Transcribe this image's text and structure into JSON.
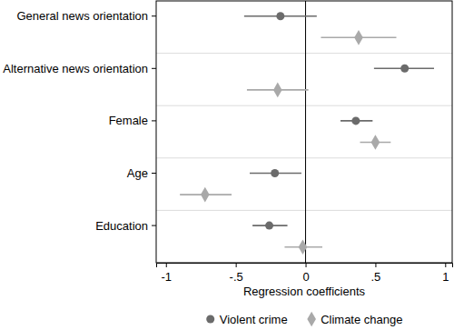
{
  "chart_data": {
    "type": "dot",
    "orientation": "horizontal",
    "x_label": "Regression coefficients",
    "categories": [
      "General news orientation",
      "Alternative news orientation",
      "Female",
      "Age",
      "Education"
    ],
    "series": [
      {
        "name": "Violent crime",
        "color": "#6b6b6b",
        "marker": "circle",
        "values": [
          -0.18,
          0.71,
          0.36,
          -0.22,
          -0.26
        ],
        "ci_lower": [
          -0.44,
          0.49,
          0.25,
          -0.4,
          -0.38
        ],
        "ci_upper": [
          0.08,
          0.92,
          0.48,
          -0.03,
          -0.13
        ]
      },
      {
        "name": "Climate change",
        "color": "#a9a9a9",
        "marker": "diamond",
        "values": [
          0.38,
          -0.2,
          0.5,
          -0.72,
          -0.02
        ],
        "ci_lower": [
          0.11,
          -0.42,
          0.39,
          -0.9,
          -0.15
        ],
        "ci_upper": [
          0.65,
          0.02,
          0.61,
          -0.53,
          0.12
        ]
      }
    ],
    "xlim": [
      -1.07,
      1.05
    ],
    "xticks": [
      -1,
      {
        "value": -0.5,
        "label": "-.5"
      },
      0,
      {
        "value": 0.5,
        "label": ".5"
      },
      1
    ],
    "reference_line": 0,
    "grid": false,
    "legend": "bottom"
  }
}
